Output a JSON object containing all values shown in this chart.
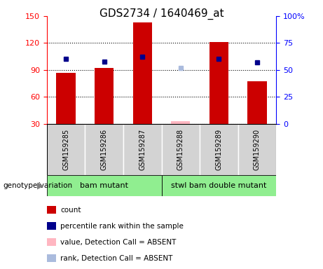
{
  "title": "GDS2734 / 1640469_at",
  "samples": [
    "GSM159285",
    "GSM159286",
    "GSM159287",
    "GSM159288",
    "GSM159289",
    "GSM159290"
  ],
  "counts": [
    87,
    92,
    143,
    null,
    121,
    77
  ],
  "counts_absent": [
    null,
    null,
    null,
    33,
    null,
    null
  ],
  "percentile_ranks": [
    60,
    58,
    62,
    null,
    60,
    57
  ],
  "percentile_ranks_absent": [
    null,
    null,
    null,
    52,
    null,
    null
  ],
  "groups": [
    {
      "label": "bam mutant",
      "samples": [
        0,
        1,
        2
      ],
      "color": "#90EE90"
    },
    {
      "label": "stwl bam double mutant",
      "samples": [
        3,
        4,
        5
      ],
      "color": "#90EE90"
    }
  ],
  "ylim_left": [
    30,
    150
  ],
  "ylim_right": [
    0,
    100
  ],
  "yticks_left": [
    30,
    60,
    90,
    120,
    150
  ],
  "yticks_right": [
    0,
    25,
    50,
    75,
    100
  ],
  "bar_color": "#CC0000",
  "bar_color_absent": "#FFB6C1",
  "dot_color": "#00008B",
  "dot_color_absent": "#AABBDD",
  "bar_width": 0.5,
  "background_plot": "#FFFFFF",
  "background_label": "#D3D3D3",
  "legend_items": [
    {
      "label": "count",
      "color": "#CC0000"
    },
    {
      "label": "percentile rank within the sample",
      "color": "#00008B"
    },
    {
      "label": "value, Detection Call = ABSENT",
      "color": "#FFB6C1"
    },
    {
      "label": "rank, Detection Call = ABSENT",
      "color": "#AABBDD"
    }
  ]
}
